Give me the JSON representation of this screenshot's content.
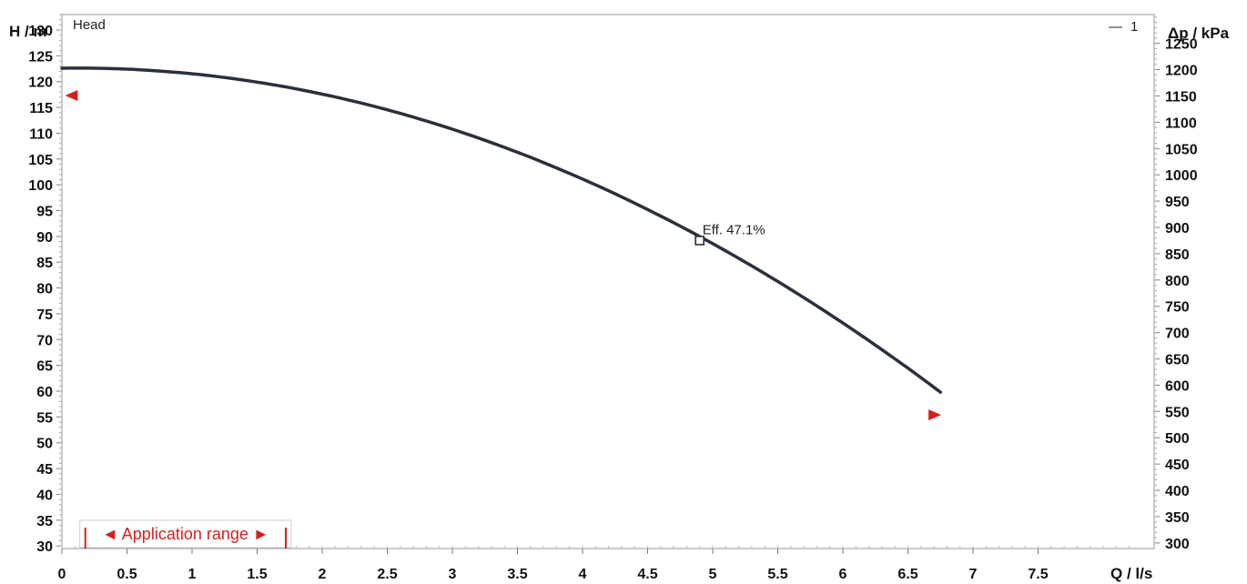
{
  "chart_data": {
    "type": "line",
    "panel_title": "Head",
    "series": [
      {
        "name": "1",
        "x": [
          0,
          0.5,
          1,
          1.5,
          2,
          2.5,
          3,
          3.5,
          4,
          4.5,
          4.9,
          5.5,
          6,
          6.5,
          6.75
        ],
        "y": [
          122.6,
          122.2,
          120.9,
          118.6,
          115.4,
          111.4,
          106.4,
          100.6,
          93.8,
          86.2,
          89.2,
          79.3,
          72.3,
          64.5,
          60.1
        ]
      }
    ],
    "xlabel": "Q / l/s",
    "ylabel_left": "H / m",
    "ylabel_right": "Δp / kPa",
    "xlim": [
      0,
      8.25
    ],
    "ylim": [
      29.5,
      133
    ],
    "x_ticks": [
      {
        "value": 0,
        "label": "0"
      },
      {
        "value": 0.5,
        "label": "0.5"
      },
      {
        "value": 1,
        "label": "1"
      },
      {
        "value": 1.5,
        "label": "1.5"
      },
      {
        "value": 2,
        "label": "2"
      },
      {
        "value": 2.5,
        "label": "2.5"
      },
      {
        "value": 3,
        "label": "3"
      },
      {
        "value": 3.5,
        "label": "3.5"
      },
      {
        "value": 4,
        "label": "4"
      },
      {
        "value": 4.5,
        "label": "4.5"
      },
      {
        "value": 5,
        "label": "5"
      },
      {
        "value": 5.5,
        "label": "5.5"
      },
      {
        "value": 6,
        "label": "6"
      },
      {
        "value": 6.5,
        "label": "6.5"
      },
      {
        "value": 7,
        "label": "7"
      },
      {
        "value": 7.5,
        "label": "7.5"
      }
    ],
    "y_ticks_left": [
      "30",
      "35",
      "40",
      "45",
      "50",
      "55",
      "60",
      "65",
      "70",
      "75",
      "80",
      "85",
      "90",
      "95",
      "100",
      "105",
      "110",
      "115",
      "120",
      "125",
      "130"
    ],
    "y_ticks_right": [
      "300",
      "350",
      "400",
      "450",
      "500",
      "550",
      "600",
      "650",
      "700",
      "750",
      "800",
      "850",
      "900",
      "950",
      "1000",
      "1050",
      "1100",
      "1150",
      "1200",
      "1250"
    ],
    "right_axis_kpa_per_m": 9.81,
    "annotation": {
      "label": "Eff.  47.1%",
      "x": 4.9,
      "y": 89.2
    },
    "application_range": {
      "label": "◄ Application range ►",
      "x_start": 0.18,
      "x_end": 1.72
    },
    "markers": [
      {
        "name": "left-limit-marker",
        "x": 0.08,
        "y": 117.3,
        "direction": "left"
      },
      {
        "name": "right-limit-marker",
        "x": 6.7,
        "y": 55.4,
        "direction": "right"
      }
    ],
    "legend": {
      "line_symbol": "—",
      "label": "1",
      "placement": "top-right"
    },
    "colors": {
      "curve": "#2a2f3a",
      "accent": "#d62020",
      "frame": "#999999"
    },
    "grid": false
  }
}
